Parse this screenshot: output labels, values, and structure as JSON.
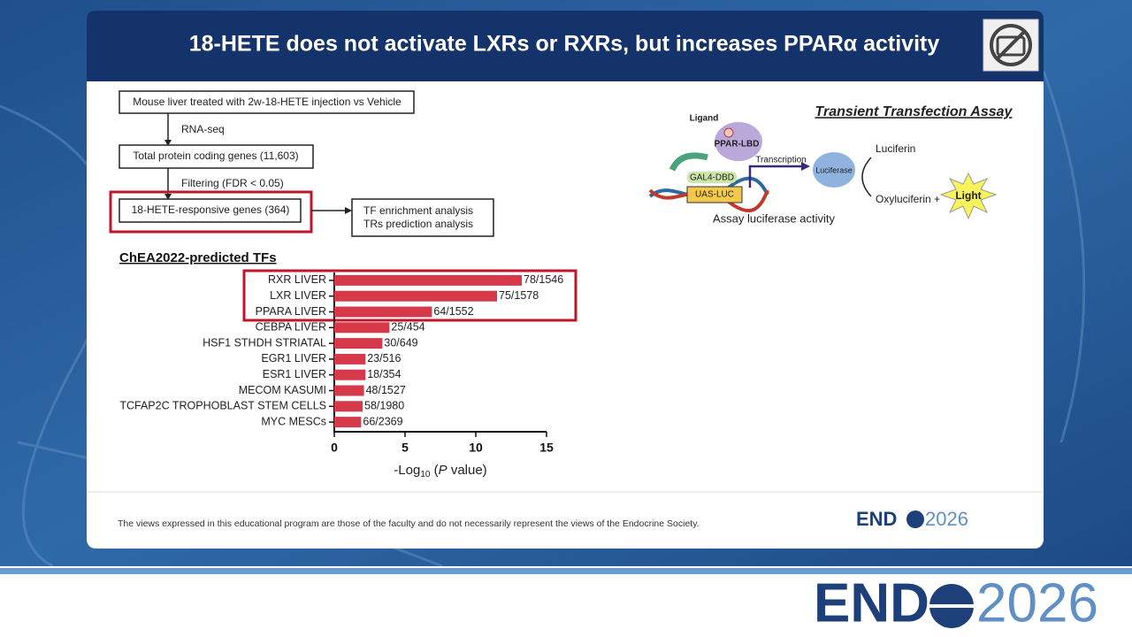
{
  "title": "18-HETE does not activate LXRs or RXRs, but increases PPARα activity",
  "flowchart": {
    "nodes": [
      "Mouse liver treated with 2w-18-HETE injection vs Vehicle",
      "Total protein coding genes (11,603)",
      "18-HETE-responsive genes (364)",
      [
        "TF enrichment analysis",
        "TRs prediction analysis"
      ]
    ],
    "edges": [
      "RNA-seq",
      "Filtering (FDR < 0.05)"
    ]
  },
  "assay": {
    "title": "Transient Transfection Assay",
    "ligand": "Ligand",
    "lbd": "PPAR-LBD",
    "dbd": "GAL4-DBD",
    "reporter": "UAS-LUC",
    "transcription": "Transcription",
    "enzyme": "Luciferase",
    "substrate": "Luciferin",
    "product": "Oxyluciferin +",
    "light": "Light",
    "caption": "Assay luciferase activity"
  },
  "chart_data": {
    "type": "hbar",
    "title": "ChEA2022-predicted TFs",
    "categories": [
      "RXR LIVER",
      "LXR LIVER",
      "PPARA LIVER",
      "CEBPA LIVER",
      "HSF1 STHDH STRIATAL",
      "EGR1 LIVER",
      "ESR1 LIVER",
      "MECOM KASUMI",
      "TCFAP2C TROPHOBLAST STEM CELLS",
      "MYC MESCs"
    ],
    "values": [
      13.25,
      11.5,
      6.9,
      3.9,
      3.4,
      2.2,
      2.2,
      2.1,
      2.0,
      1.9
    ],
    "overlaps": [
      "78/1546",
      "75/1578",
      "64/1552",
      "25/454",
      "30/649",
      "23/516",
      "18/354",
      "48/1527",
      "58/1980",
      "66/2369"
    ],
    "color": "#d63a4a",
    "xlim": [
      0,
      15
    ],
    "xticks": [
      0,
      5,
      10,
      15
    ],
    "xlabel": [
      "-Log",
      "10",
      " (",
      "P",
      " value)"
    ]
  },
  "disclaimer": "The views expressed in this educational program are those of the faculty and do not necessarily represent the views of the Endocrine Society.",
  "logo": {
    "left": "END",
    "right": "2026"
  }
}
